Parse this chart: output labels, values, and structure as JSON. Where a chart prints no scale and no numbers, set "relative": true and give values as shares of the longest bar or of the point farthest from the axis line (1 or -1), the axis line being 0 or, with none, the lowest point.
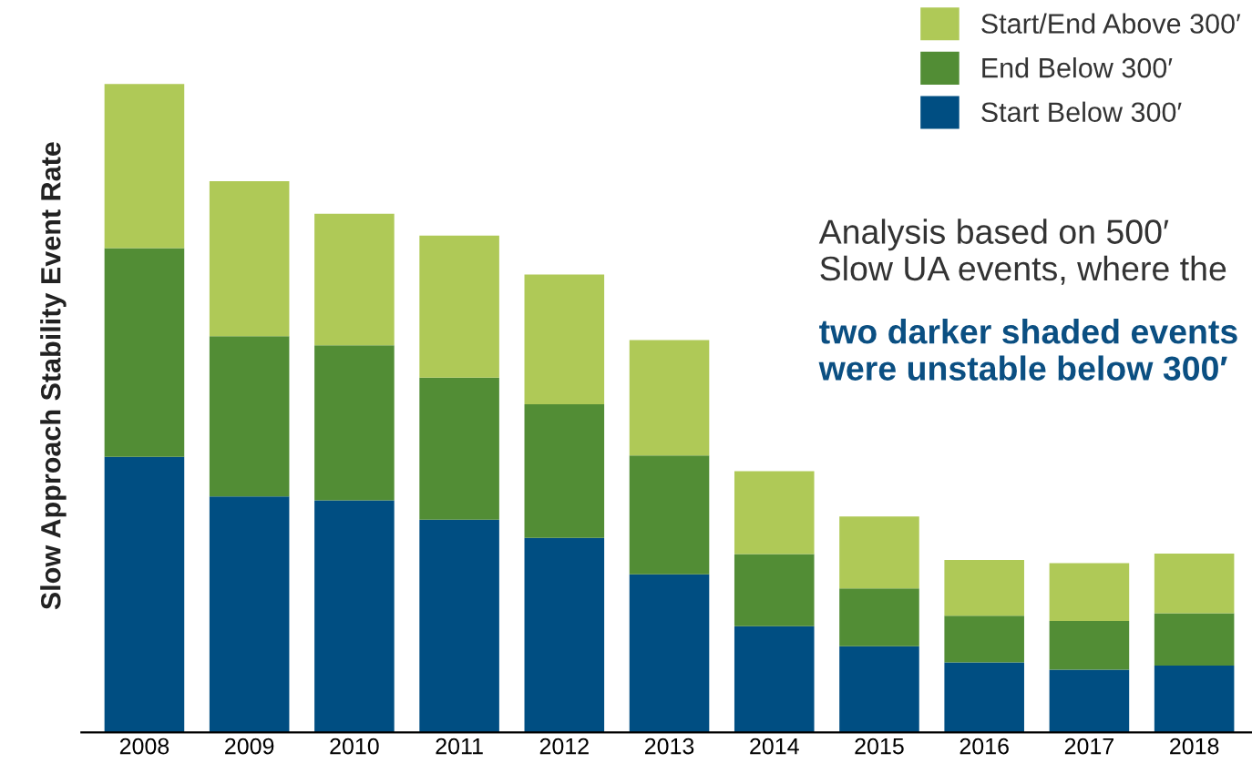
{
  "chart_data": {
    "type": "bar",
    "stacked": true,
    "relative": true,
    "ylabel": "Slow Approach Stability Event Rate",
    "categories": [
      "2008",
      "2009",
      "2010",
      "2011",
      "2012",
      "2013",
      "2014",
      "2015",
      "2016",
      "2017",
      "2018"
    ],
    "series": [
      {
        "name": "Start Below 300′",
        "color": "#004e82",
        "values": [
          0.425,
          0.364,
          0.358,
          0.328,
          0.3,
          0.244,
          0.164,
          0.133,
          0.108,
          0.097,
          0.103
        ]
      },
      {
        "name": "End Below 300′",
        "color": "#528d35",
        "values": [
          0.322,
          0.247,
          0.239,
          0.219,
          0.206,
          0.183,
          0.111,
          0.089,
          0.072,
          0.075,
          0.081
        ]
      },
      {
        "name": "Start/End Above 300′",
        "color": "#afc957",
        "values": [
          0.253,
          0.239,
          0.203,
          0.219,
          0.2,
          0.178,
          0.128,
          0.111,
          0.086,
          0.089,
          0.092
        ]
      }
    ],
    "annotations": [
      "Analysis based on 500′\nSlow UA events, where the",
      "two darker shaded events\nwere unstable below 300′"
    ],
    "legend": "top right",
    "grid": false
  }
}
